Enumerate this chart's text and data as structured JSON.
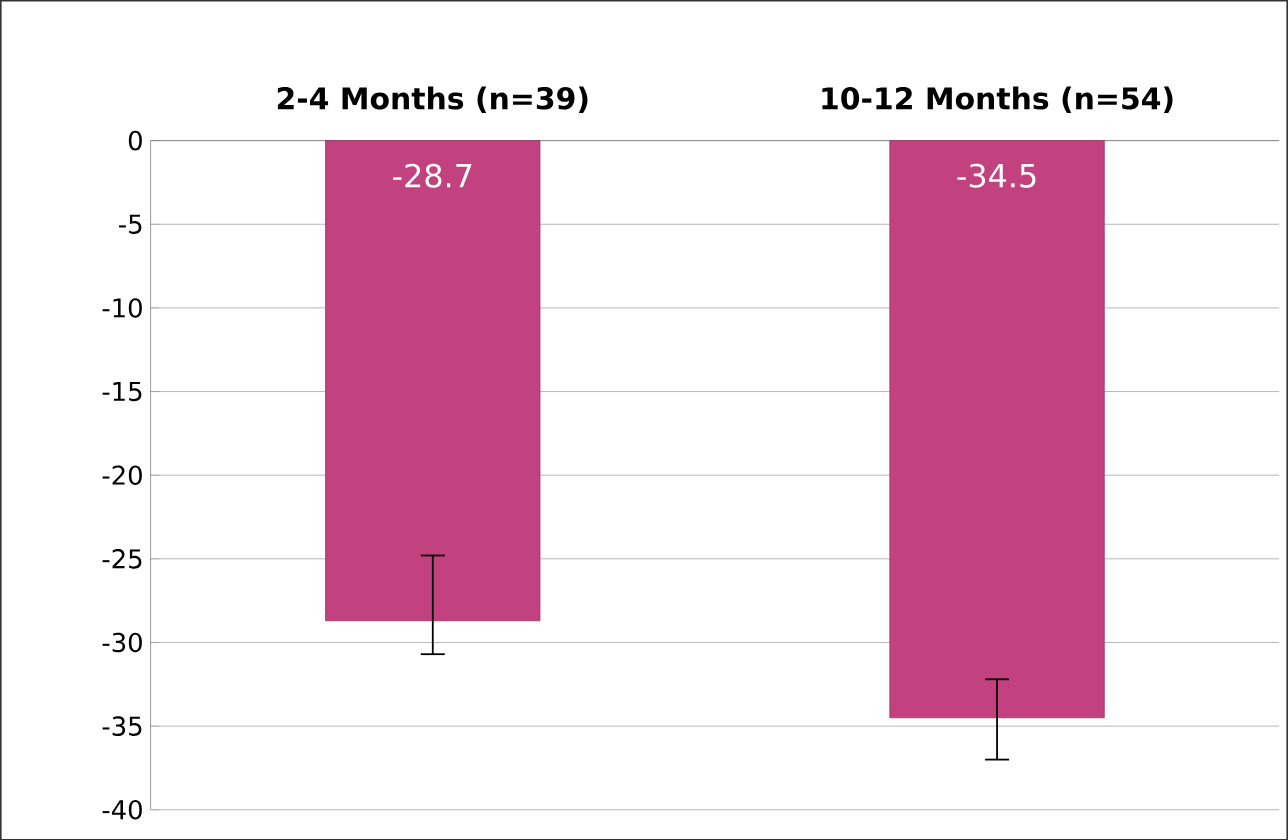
{
  "chart_data": {
    "type": "bar",
    "categories": [
      "2-4 Months (n=39)",
      "10-12 Months (n=54)"
    ],
    "values": [
      -28.7,
      -34.5
    ],
    "errors": [
      [
        -30.7,
        -24.8
      ],
      [
        -37.0,
        -32.2
      ]
    ],
    "color": "#c2417f",
    "ylim": [
      -40,
      0
    ],
    "yticks": [
      0,
      -5,
      -10,
      -15,
      -20,
      -25,
      -30,
      -35,
      -40
    ],
    "grid": "y",
    "data_labels": true
  }
}
